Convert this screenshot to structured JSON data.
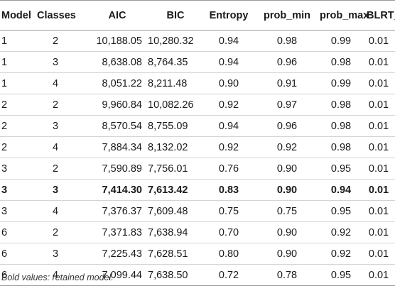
{
  "table": {
    "headers": [
      "Model",
      "Classes",
      "AIC",
      "BIC",
      "Entropy",
      "prob_min",
      "prob_max",
      "BLRT_p"
    ],
    "rows": [
      {
        "cells": [
          "1",
          "2",
          "10,188.05",
          "10,280.32",
          "0.94",
          "0.98",
          "0.99",
          "0.01"
        ],
        "bold": false
      },
      {
        "cells": [
          "1",
          "3",
          "8,638.08",
          "8,764.35",
          "0.94",
          "0.96",
          "0.98",
          "0.01"
        ],
        "bold": false
      },
      {
        "cells": [
          "1",
          "4",
          "8,051.22",
          "8,211.48",
          "0.90",
          "0.91",
          "0.99",
          "0.01"
        ],
        "bold": false
      },
      {
        "cells": [
          "2",
          "2",
          "9,960.84",
          "10,082.26",
          "0.92",
          "0.97",
          "0.98",
          "0.01"
        ],
        "bold": false
      },
      {
        "cells": [
          "2",
          "3",
          "8,570.54",
          "8,755.09",
          "0.94",
          "0.96",
          "0.98",
          "0.01"
        ],
        "bold": false
      },
      {
        "cells": [
          "2",
          "4",
          "7,884.34",
          "8,132.02",
          "0.92",
          "0.92",
          "0.98",
          "0.01"
        ],
        "bold": false
      },
      {
        "cells": [
          "3",
          "2",
          "7,590.89",
          "7,756.01",
          "0.76",
          "0.90",
          "0.95",
          "0.01"
        ],
        "bold": false
      },
      {
        "cells": [
          "3",
          "3",
          "7,414.30",
          "7,613.42",
          "0.83",
          "0.90",
          "0.94",
          "0.01"
        ],
        "bold": true
      },
      {
        "cells": [
          "3",
          "4",
          "7,376.37",
          "7,609.48",
          "0.75",
          "0.75",
          "0.95",
          "0.01"
        ],
        "bold": false
      },
      {
        "cells": [
          "6",
          "2",
          "7,371.83",
          "7,638.94",
          "0.70",
          "0.90",
          "0.92",
          "0.01"
        ],
        "bold": false
      },
      {
        "cells": [
          "6",
          "3",
          "7,225.43",
          "7,628.51",
          "0.80",
          "0.90",
          "0.92",
          "0.01"
        ],
        "bold": false
      },
      {
        "cells": [
          "6",
          "4",
          "7,099.44",
          "7,638.50",
          "0.72",
          "0.78",
          "0.95",
          "0.01"
        ],
        "bold": false
      }
    ]
  },
  "footnote": "Bold values: retained model."
}
